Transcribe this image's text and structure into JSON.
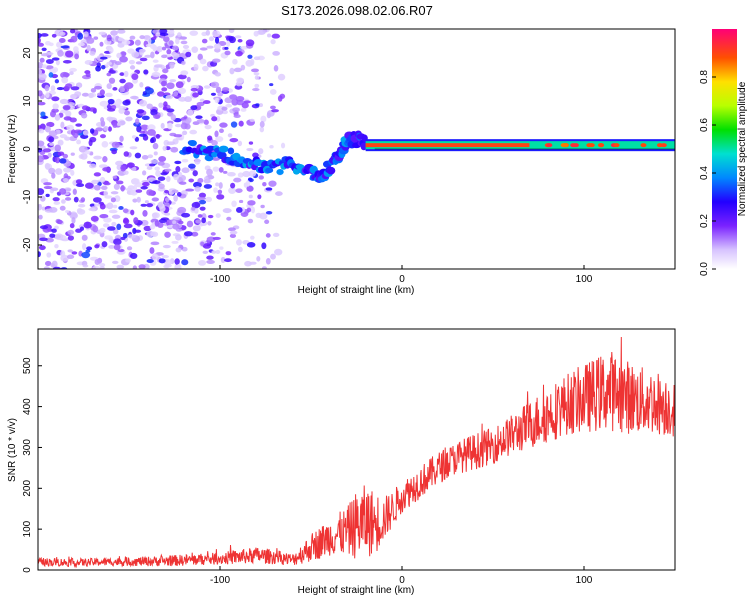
{
  "title": "S173.2026.098.02.06.R07",
  "chart_data": [
    {
      "type": "heatmap",
      "name": "spectrogram",
      "xlabel": "Height of straight line (km)",
      "ylabel": "Frequency (Hz)",
      "xlim": [
        -200,
        150
      ],
      "ylim": [
        -25,
        25
      ],
      "xticks": [
        -100,
        0,
        100
      ],
      "yticks": [
        -20,
        -10,
        0,
        10,
        20
      ],
      "colorbar": {
        "label": "Normalized spectral amplitude",
        "range": [
          0,
          1
        ],
        "ticks": [
          "0.0",
          "0.2",
          "0.4",
          "0.6",
          "0.8"
        ]
      },
      "features": [
        {
          "region": "noise",
          "x_range": [
            -200,
            -65
          ],
          "y_range": [
            -25,
            25
          ],
          "amplitude": 0.12
        },
        {
          "region": "track_wandering",
          "x": [
            -120,
            -110,
            -100,
            -90,
            -80,
            -70,
            -60,
            -50,
            -45,
            -40,
            -35,
            -30,
            -25,
            -20
          ],
          "freq_hz": [
            0.5,
            -0.5,
            -1,
            -2,
            -3,
            -4,
            -3,
            -5,
            -6,
            -4,
            -1,
            1.5,
            2,
            1.5
          ],
          "amplitude": 0.35
        },
        {
          "region": "track_steady",
          "x_range": [
            -20,
            150
          ],
          "freq_hz": 0.8,
          "amplitude": 0.85
        }
      ]
    },
    {
      "type": "line",
      "name": "snr",
      "xlabel": "Height of straight line (km)",
      "ylabel": "SNR (10 * v/v)",
      "xlim": [
        -200,
        150
      ],
      "ylim": [
        0,
        590
      ],
      "xticks": [
        -100,
        0,
        100
      ],
      "yticks": [
        0,
        100,
        200,
        300,
        400,
        500
      ],
      "color": "#ee3333",
      "series": [
        {
          "name": "SNR",
          "x": [
            -200,
            -180,
            -160,
            -140,
            -120,
            -100,
            -90,
            -80,
            -70,
            -60,
            -50,
            -40,
            -30,
            -25,
            -20,
            -15,
            -10,
            -5,
            0,
            10,
            20,
            30,
            40,
            50,
            60,
            70,
            80,
            90,
            100,
            110,
            115,
            120,
            130,
            140,
            150
          ],
          "mean": [
            20,
            18,
            20,
            21,
            24,
            28,
            32,
            36,
            32,
            25,
            55,
            80,
            95,
            110,
            120,
            115,
            125,
            150,
            180,
            215,
            250,
            275,
            290,
            305,
            330,
            355,
            380,
            405,
            420,
            435,
            440,
            430,
            415,
            410,
            395
          ],
          "spread": [
            10,
            10,
            10,
            12,
            14,
            15,
            18,
            20,
            18,
            15,
            35,
            45,
            60,
            85,
            90,
            80,
            55,
            45,
            40,
            40,
            40,
            40,
            45,
            45,
            50,
            60,
            70,
            75,
            85,
            95,
            100,
            95,
            85,
            80,
            70
          ]
        }
      ]
    }
  ]
}
